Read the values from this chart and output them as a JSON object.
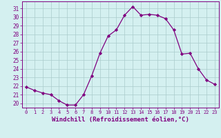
{
  "x": [
    0,
    1,
    2,
    3,
    4,
    5,
    6,
    7,
    8,
    9,
    10,
    11,
    12,
    13,
    14,
    15,
    16,
    17,
    18,
    19,
    20,
    21,
    22,
    23
  ],
  "y": [
    21.9,
    21.5,
    21.2,
    21.0,
    20.3,
    19.8,
    19.8,
    21.0,
    23.2,
    25.8,
    27.8,
    28.5,
    30.2,
    31.2,
    30.2,
    30.3,
    30.2,
    29.8,
    28.5,
    25.7,
    25.8,
    24.0,
    22.7,
    22.2
  ],
  "line_color": "#800080",
  "marker": "D",
  "marker_size": 2.2,
  "bg_color": "#d4f0f0",
  "grid_color": "#aacccc",
  "xlabel": "Windchill (Refroidissement éolien,°C)",
  "xlabel_color": "#800080",
  "xlabel_fontsize": 6.5,
  "ylabel_ticks": [
    20,
    21,
    22,
    23,
    24,
    25,
    26,
    27,
    28,
    29,
    30,
    31
  ],
  "xtick_labels": [
    "0",
    "1",
    "2",
    "3",
    "4",
    "5",
    "6",
    "7",
    "8",
    "9",
    "10",
    "11",
    "12",
    "13",
    "14",
    "15",
    "16",
    "17",
    "18",
    "19",
    "20",
    "21",
    "22",
    "23"
  ],
  "ylim": [
    19.5,
    31.8
  ],
  "xlim": [
    -0.5,
    23.5
  ],
  "tick_color": "#800080",
  "ytick_fontsize": 5.5,
  "xtick_fontsize": 5.0,
  "axis_color": "#800080",
  "linewidth": 0.9,
  "spine_linewidth": 0.7
}
